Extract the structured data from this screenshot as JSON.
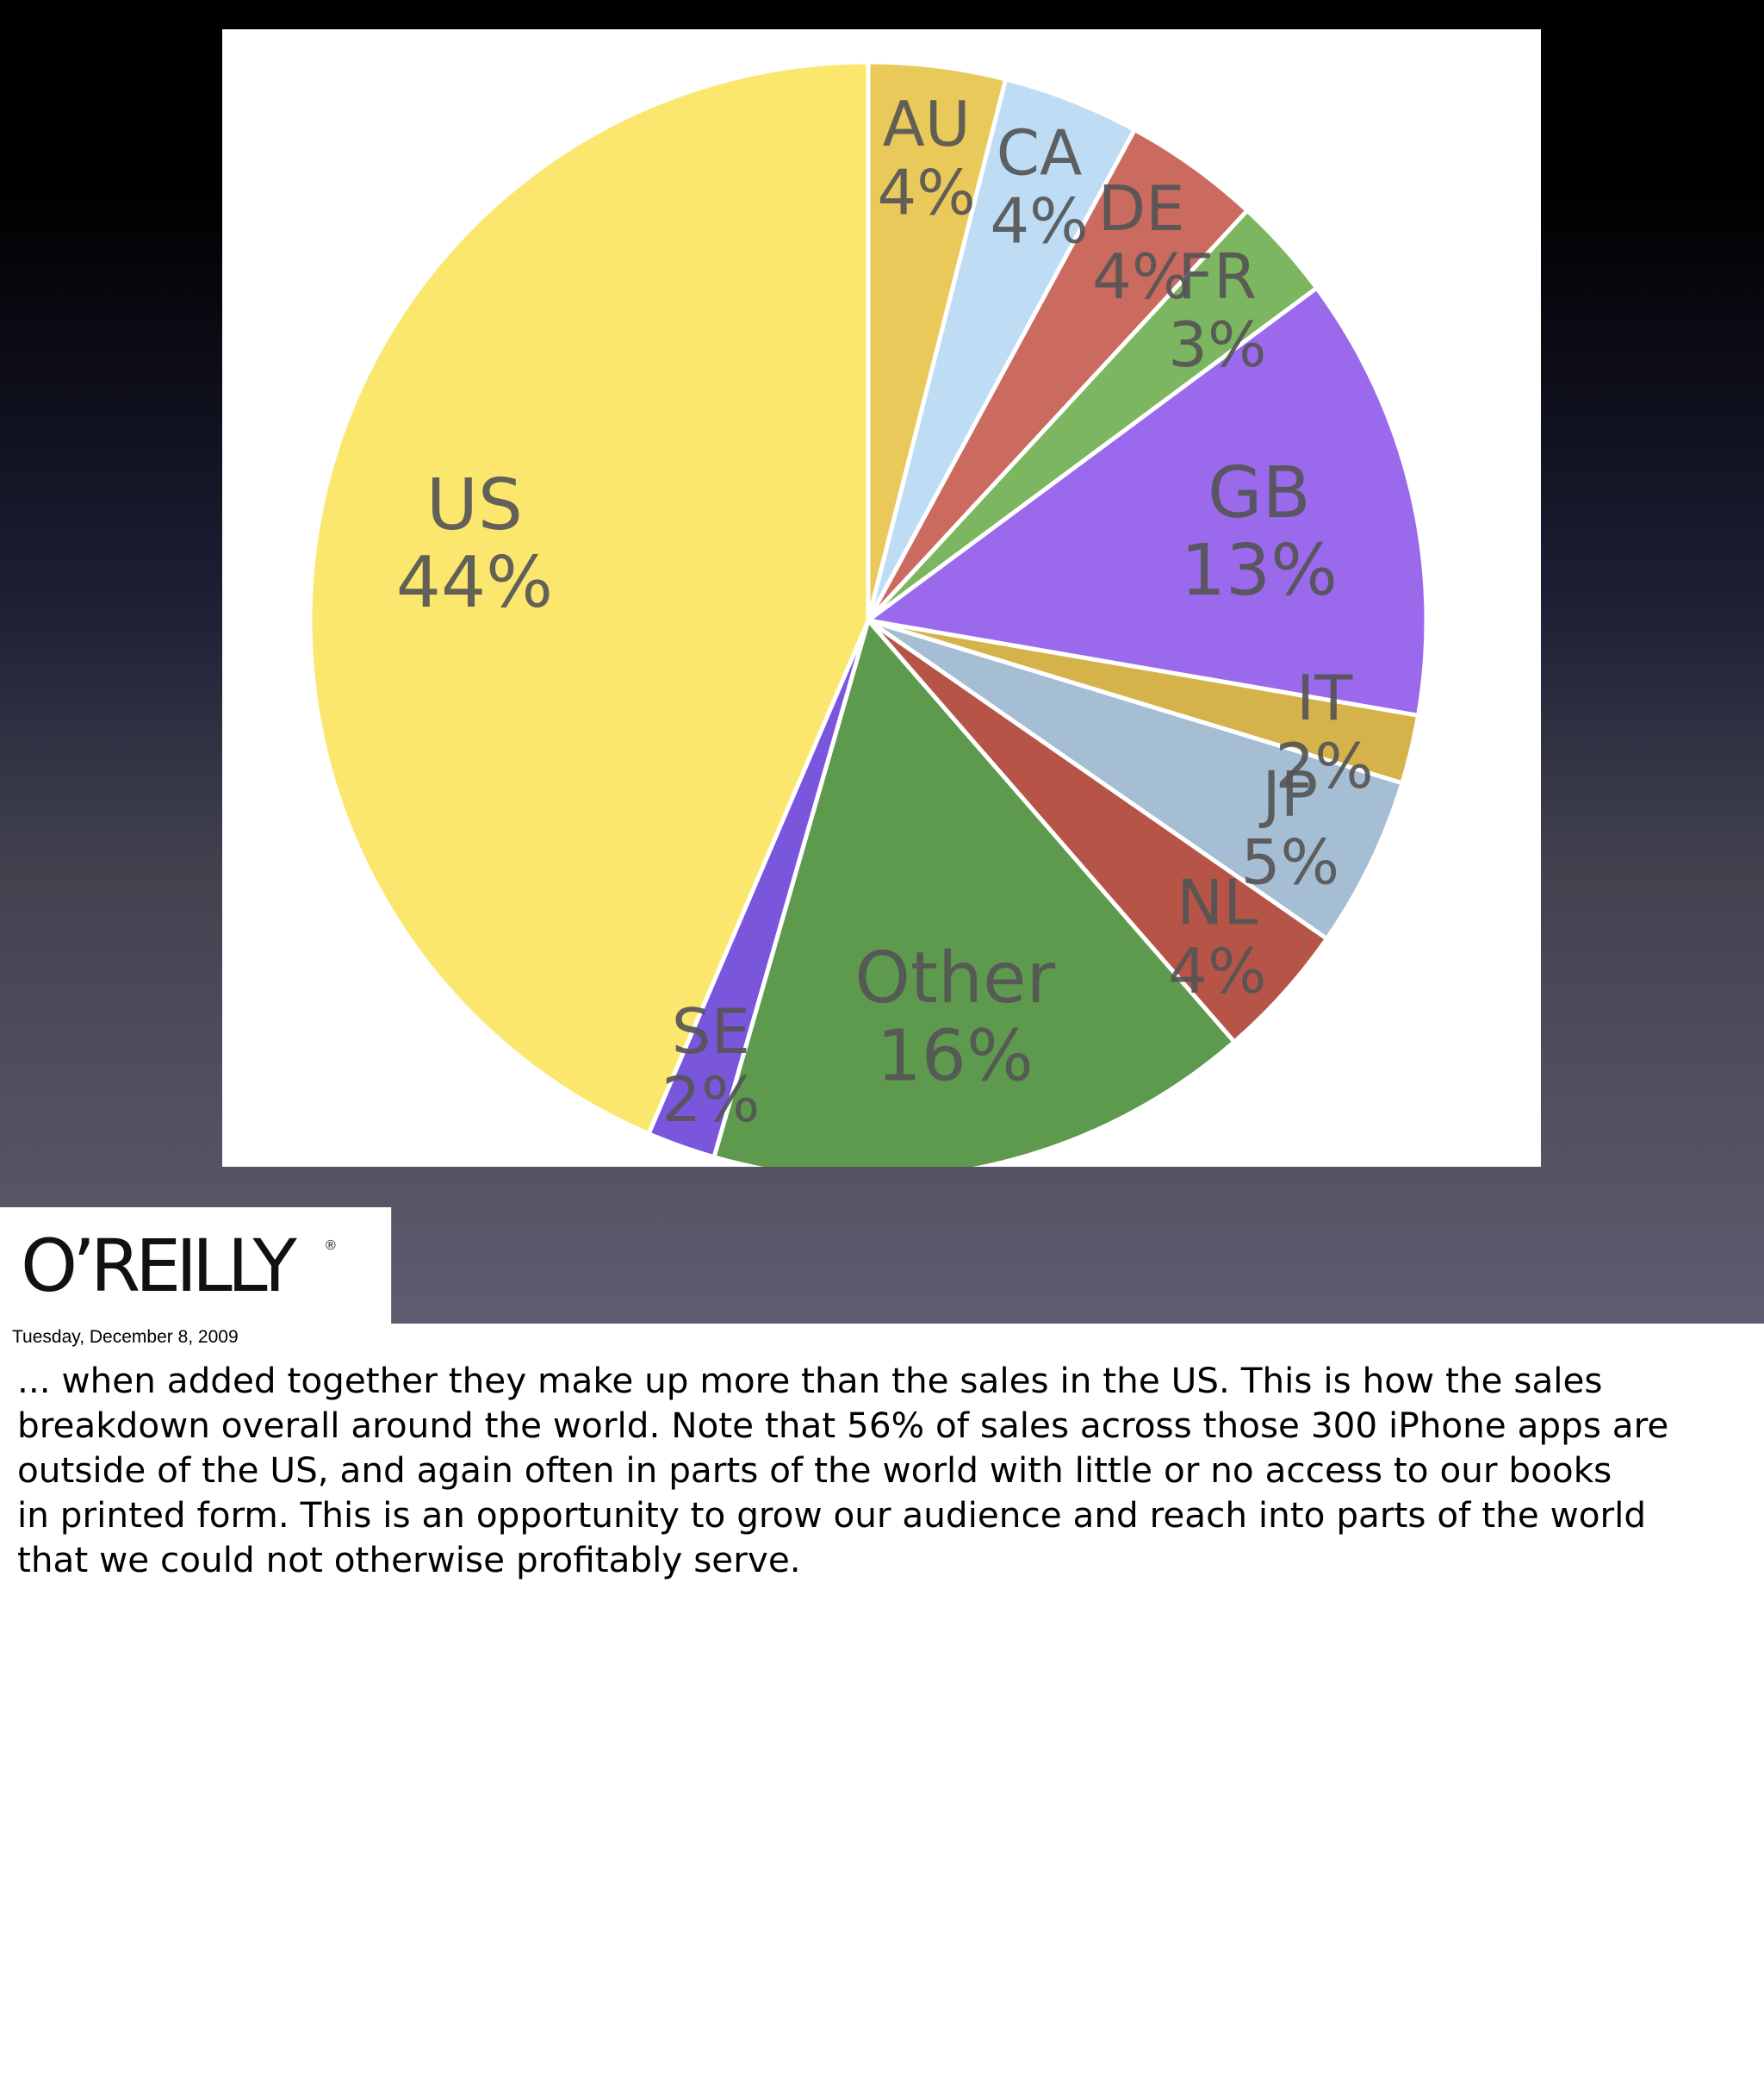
{
  "chart_data": {
    "type": "pie",
    "slices": [
      {
        "label": "AU",
        "value": 4,
        "value_label": "4%",
        "color": "#E8C95A"
      },
      {
        "label": "CA",
        "value": 4,
        "value_label": "4%",
        "color": "#BEDDF5"
      },
      {
        "label": "DE",
        "value": 4,
        "value_label": "4%",
        "color": "#CB6A5E"
      },
      {
        "label": "FR",
        "value": 3,
        "value_label": "3%",
        "color": "#7DB660"
      },
      {
        "label": "GB",
        "value": 13,
        "value_label": "13%",
        "color": "#9B6AEC"
      },
      {
        "label": "IT",
        "value": 2,
        "value_label": "2%",
        "color": "#D6B24A"
      },
      {
        "label": "JP",
        "value": 5,
        "value_label": "5%",
        "color": "#A6BED3"
      },
      {
        "label": "NL",
        "value": 4,
        "value_label": "4%",
        "color": "#B65448"
      },
      {
        "label": "Other",
        "value": 16,
        "value_label": "16%",
        "color": "#5E9A4E"
      },
      {
        "label": "SE",
        "value": 2,
        "value_label": "2%",
        "color": "#7A56DC"
      },
      {
        "label": "US",
        "value": 44,
        "value_label": "44%",
        "color": "#FBE76E"
      }
    ]
  },
  "logo": {
    "text": "O’REILLY",
    "mark": "®"
  },
  "slide": {
    "date": "Tuesday, December 8, 2009"
  },
  "notes": {
    "lines": [
      "... when added together they make up more than the sales in the US. This is how the sales",
      "breakdown overall around the world. Note that 56% of sales across those 300 iPhone apps are",
      "outside of the US, and again often in parts of the world with little or no access to our books",
      "in printed form. This is an opportunity to grow our audience and reach into parts of the world",
      "that we could not otherwise profitably serve."
    ]
  }
}
